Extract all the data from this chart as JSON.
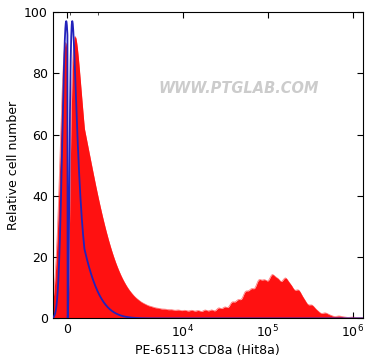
{
  "title": "",
  "xlabel": "PE-65113 CD8a (Hit8a)",
  "ylabel": "Relative cell number",
  "ylim": [
    0,
    100
  ],
  "yticks": [
    0,
    20,
    40,
    60,
    80,
    100
  ],
  "watermark": "WWW.PTGLAB.COM",
  "watermark_color": "#cccccc",
  "bg_color": "#ffffff",
  "blue_line_color": "#2222bb",
  "red_fill_color": "#ff1111",
  "red_line_color": "#cc0000",
  "spine_color": "#000000",
  "linthresh": 700,
  "linscale": 0.18,
  "xlim_left": -600,
  "xlim_right": 1300000
}
